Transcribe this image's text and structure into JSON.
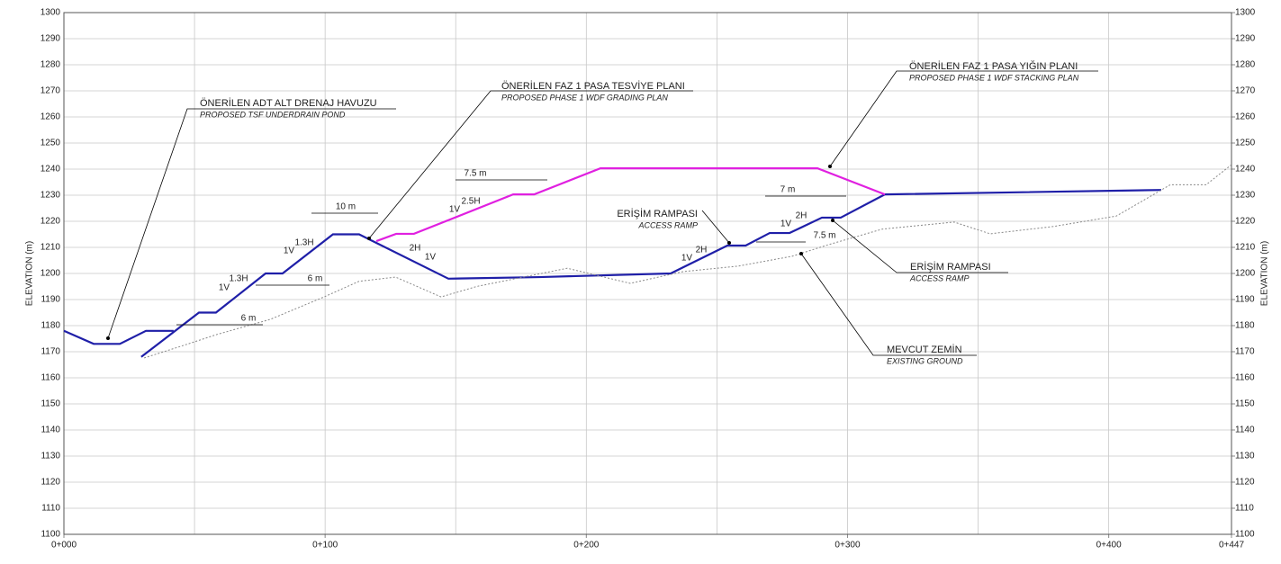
{
  "chart_data": {
    "type": "line",
    "ylabel": "ELEVATION (m)",
    "y2label": "ELEVATION (m)",
    "xlim": [
      0,
      447
    ],
    "ylim": [
      1100,
      1300
    ],
    "y2lim": [
      1100,
      1300
    ],
    "xticks": [
      {
        "value": 0,
        "label": "0+000"
      },
      {
        "value": 100,
        "label": "0+100"
      },
      {
        "value": 200,
        "label": "0+200"
      },
      {
        "value": 300,
        "label": "0+300"
      },
      {
        "value": 400,
        "label": "0+400"
      },
      {
        "value": 447,
        "label": "0+447"
      }
    ],
    "yticks": [
      1100,
      1110,
      1120,
      1130,
      1140,
      1150,
      1160,
      1170,
      1180,
      1190,
      1200,
      1210,
      1220,
      1230,
      1240,
      1250,
      1260,
      1270,
      1280,
      1290,
      1300
    ],
    "y2ticks": [
      1100,
      1110,
      1120,
      1130,
      1140,
      1150,
      1160,
      1170,
      1180,
      1190,
      1200,
      1210,
      1220,
      1230,
      1240,
      1250,
      1260,
      1270,
      1280,
      1290,
      1300
    ],
    "grid": true,
    "series": [
      {
        "color": "#1f1fa8",
        "x": [
          0,
          11.4,
          21.4,
          31.4,
          42
        ],
        "values": [
          1178,
          1173,
          1173,
          1178,
          1178
        ]
      },
      {
        "color": "#1f1fa8",
        "x": [
          29.6,
          51.7,
          58.2,
          77.2,
          83.7,
          103,
          113,
          147.2,
          182,
          232.3,
          254,
          261,
          270.2,
          277.8,
          290.2,
          297.4,
          314.3,
          420.1
        ],
        "values": [
          1168,
          1185,
          1185,
          1200,
          1200,
          1215,
          1215,
          1198,
          1198.6,
          1200,
          1210.7,
          1210.7,
          1215.5,
          1215.5,
          1221.4,
          1221.4,
          1230.3,
          1232
        ]
      },
      {
        "color": "#e020e0",
        "x": [
          119.6,
          127.2,
          134,
          172,
          180,
          205.4,
          288.5,
          314.3
        ],
        "values": [
          1212.4,
          1215.2,
          1215.2,
          1230.3,
          1230.3,
          1240.3,
          1240.3,
          1230.3
        ]
      },
      {
        "color": "#888888",
        "dashed": true,
        "x": [
          30.7,
          44.5,
          58.2,
          79,
          99.6,
          113,
          127,
          144.4,
          158,
          192.7,
          216.8,
          237,
          258,
          278.8,
          292.6,
          313.3,
          340.8,
          354.6,
          378.8,
          402.9,
          423.6,
          437.3,
          447
        ],
        "values": [
          1167.6,
          1172,
          1176.5,
          1182.4,
          1191,
          1197,
          1198.6,
          1191,
          1195,
          1202,
          1196.2,
          1200.7,
          1202.8,
          1206.6,
          1211,
          1217,
          1219.7,
          1215.2,
          1218,
          1222,
          1234,
          1234,
          1241.7
        ]
      }
    ],
    "annotations": [
      {
        "text": "ÖNERİLEN ADT ALT DRENAJ HAVUZU",
        "subtext": "PROPOSED TSF UNDERDRAIN POND"
      },
      {
        "text": "ÖNERİLEN FAZ 1 PASA TESVİYE PLANI",
        "subtext": "PROPOSED PHASE 1 WDF GRADING PLAN"
      },
      {
        "text": "ÖNERİLEN FAZ 1 PASA YIĞIN PLANI",
        "subtext": "PROPOSED PHASE 1 WDF STACKING PLAN"
      },
      {
        "text": "ERİŞİM RAMPASI",
        "subtext": "ACCESS RAMP"
      },
      {
        "text": "ERİŞİM RAMPASI",
        "subtext": "ACCESS RAMP"
      },
      {
        "text": "MEVCUT ZEMİN",
        "subtext": "EXISTING GROUND"
      }
    ],
    "labels": [
      "6 m",
      "6 m",
      "10 m",
      "7.5 m",
      "7 m",
      "7.5 m",
      "1.3H",
      "1V",
      "1.3H",
      "1V",
      "2.5H",
      "1V",
      "2H",
      "1V",
      "2H",
      "1V",
      "2H",
      "1V"
    ]
  }
}
